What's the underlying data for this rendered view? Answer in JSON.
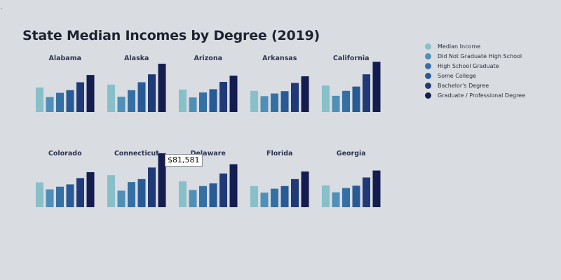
{
  "page": {
    "title": "State Median Incomes by Degree (2019)",
    "background": "#d9dce1"
  },
  "tooltip": {
    "text": "$81,581"
  },
  "legend": {
    "items": [
      {
        "label": "Median Income",
        "color": "#88c0ca"
      },
      {
        "label": "Did Not Graduate High School",
        "color": "#4f8fb8"
      },
      {
        "label": "High School Graduate",
        "color": "#3570a5"
      },
      {
        "label": "Some College",
        "color": "#285a96"
      },
      {
        "label": "Bachelor's Degree",
        "color": "#1f3a77"
      },
      {
        "label": "Graduate / Professional Degree",
        "color": "#141d4f"
      }
    ]
  },
  "chart_data": {
    "type": "bar",
    "title": "State Median Incomes by Degree (2019)",
    "categories": [
      "Median Income",
      "Did Not Graduate High School",
      "High School Graduate",
      "Some College",
      "Bachelor's Degree",
      "Graduate / Professional Degree"
    ],
    "ylim": [
      0,
      90000
    ],
    "grid": false,
    "legend_position": "right",
    "panels": [
      {
        "state": "Alabama",
        "values": [
          37000,
          22500,
          29000,
          33000,
          45000,
          56000
        ]
      },
      {
        "state": "Alaska",
        "values": [
          41500,
          23000,
          33000,
          45000,
          57000,
          73000
        ]
      },
      {
        "state": "Arizona",
        "values": [
          34000,
          22000,
          29500,
          34500,
          45500,
          55000
        ]
      },
      {
        "state": "Arkansas",
        "values": [
          32000,
          24000,
          28000,
          31500,
          44000,
          54000
        ]
      },
      {
        "state": "California",
        "values": [
          40000,
          24500,
          32000,
          38500,
          57000,
          76000
        ]
      },
      {
        "state": "Colorado",
        "values": [
          37500,
          27000,
          31000,
          34500,
          44000,
          53000
        ]
      },
      {
        "state": "Connecticut",
        "values": [
          48500,
          25000,
          38000,
          42500,
          60000,
          81581
        ]
      },
      {
        "state": "Delaware",
        "values": [
          39000,
          26000,
          32000,
          36000,
          51000,
          65000
        ]
      },
      {
        "state": "Florida",
        "values": [
          32000,
          22000,
          28000,
          32000,
          42500,
          54000
        ]
      },
      {
        "state": "Georgia",
        "values": [
          33000,
          22500,
          29000,
          32500,
          45000,
          55500
        ]
      }
    ]
  }
}
